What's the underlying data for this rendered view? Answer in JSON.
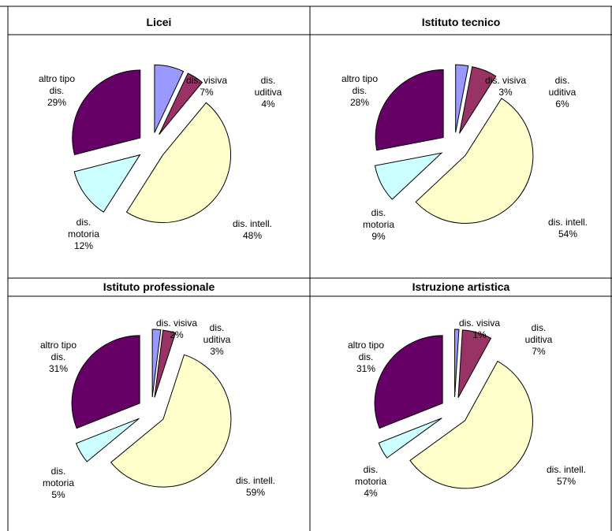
{
  "chart_data": [
    {
      "type": "pie",
      "title": "Licei",
      "slices": [
        {
          "label": "dis. visiva",
          "value": 7,
          "color": "#9999ff"
        },
        {
          "label": "dis. uditiva",
          "value": 4,
          "color": "#993366"
        },
        {
          "label": "dis. intell.",
          "value": 48,
          "color": "#ffffcc"
        },
        {
          "label": "dis. motoria",
          "value": 12,
          "color": "#ccffff"
        },
        {
          "label": "altro tipo dis.",
          "value": 29,
          "color": "#660066"
        }
      ]
    },
    {
      "type": "pie",
      "title": "Istituto tecnico",
      "slices": [
        {
          "label": "dis. visiva",
          "value": 3,
          "color": "#9999ff"
        },
        {
          "label": "dis. uditiva",
          "value": 6,
          "color": "#993366"
        },
        {
          "label": "dis. intell.",
          "value": 54,
          "color": "#ffffcc"
        },
        {
          "label": "dis. motoria",
          "value": 9,
          "color": "#ccffff"
        },
        {
          "label": "altro tipo dis.",
          "value": 28,
          "color": "#660066"
        }
      ]
    },
    {
      "type": "pie",
      "title": "Istituto professionale",
      "slices": [
        {
          "label": "dis. visiva",
          "value": 2,
          "color": "#9999ff"
        },
        {
          "label": "dis. uditiva",
          "value": 3,
          "color": "#993366"
        },
        {
          "label": "dis. intell.",
          "value": 59,
          "color": "#ffffcc"
        },
        {
          "label": "dis. motoria",
          "value": 5,
          "color": "#ccffff"
        },
        {
          "label": "altro tipo dis.",
          "value": 31,
          "color": "#660066"
        }
      ]
    },
    {
      "type": "pie",
      "title": "Istruzione artistica",
      "slices": [
        {
          "label": "dis. visiva",
          "value": 1,
          "color": "#9999ff"
        },
        {
          "label": "dis. uditiva",
          "value": 7,
          "color": "#993366"
        },
        {
          "label": "dis. intell.",
          "value": 57,
          "color": "#ffffcc"
        },
        {
          "label": "dis. motoria",
          "value": 4,
          "color": "#ccffff"
        },
        {
          "label": "altro tipo dis.",
          "value": 31,
          "color": "#660066"
        }
      ]
    }
  ]
}
